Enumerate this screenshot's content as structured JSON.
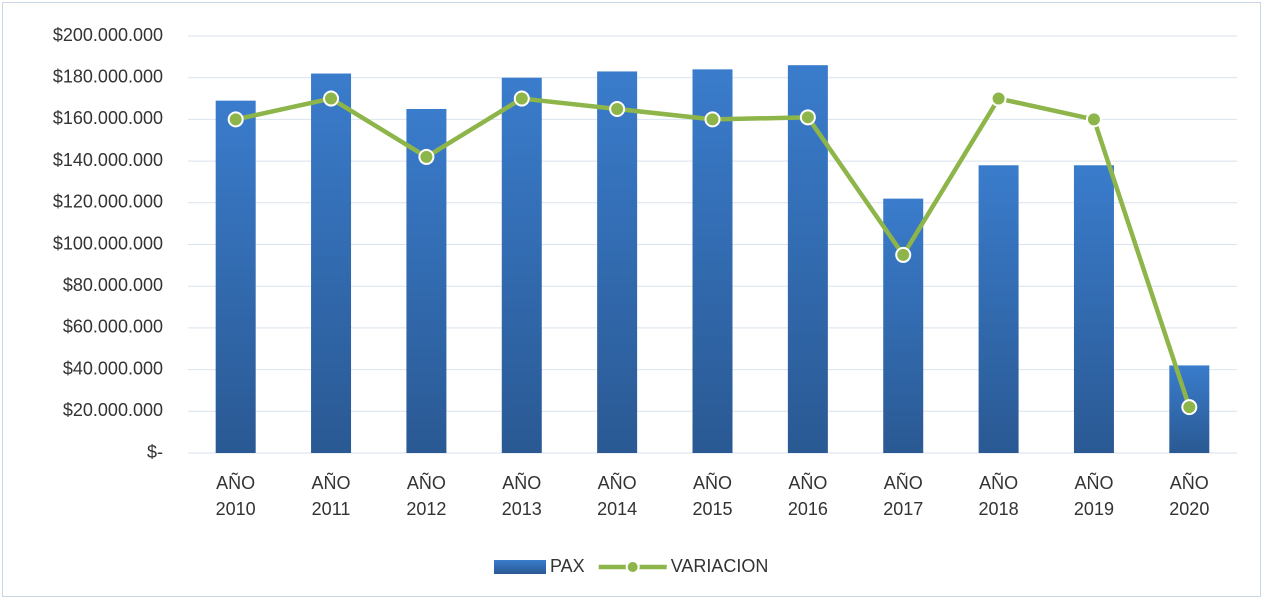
{
  "chart_data": {
    "type": "bar_line",
    "categories": [
      "AÑO 2010",
      "AÑO 2011",
      "AÑO 2012",
      "AÑO 2013",
      "AÑO 2014",
      "AÑO 2015",
      "AÑO 2016",
      "AÑO 2017",
      "AÑO 2018",
      "AÑO 2019",
      "AÑO 2020"
    ],
    "series": [
      {
        "name": "PAX",
        "type": "bar",
        "color": "#3a7ccc",
        "values": [
          169000000,
          182000000,
          165000000,
          180000000,
          183000000,
          184000000,
          186000000,
          122000000,
          138000000,
          138000000,
          42000000
        ]
      },
      {
        "name": "VARIACION",
        "type": "line",
        "color": "#8db54a",
        "values": [
          160000000,
          170000000,
          142000000,
          170000000,
          165000000,
          160000000,
          161000000,
          95000000,
          170000000,
          160000000,
          22000000
        ]
      }
    ],
    "ylim": [
      0,
      200000000
    ],
    "yticks": [
      {
        "value": 0,
        "label": "$-"
      },
      {
        "value": 20000000,
        "label": "$20.000.000"
      },
      {
        "value": 40000000,
        "label": "$40.000.000"
      },
      {
        "value": 60000000,
        "label": "$60.000.000"
      },
      {
        "value": 80000000,
        "label": "$80.000.000"
      },
      {
        "value": 100000000,
        "label": "$100.000.000"
      },
      {
        "value": 120000000,
        "label": "$120.000.000"
      },
      {
        "value": 140000000,
        "label": "$140.000.000"
      },
      {
        "value": 160000000,
        "label": "$160.000.000"
      },
      {
        "value": 180000000,
        "label": "$180.000.000"
      },
      {
        "value": 200000000,
        "label": "$200.000.000"
      }
    ],
    "grid": true,
    "legend": "bottom"
  }
}
